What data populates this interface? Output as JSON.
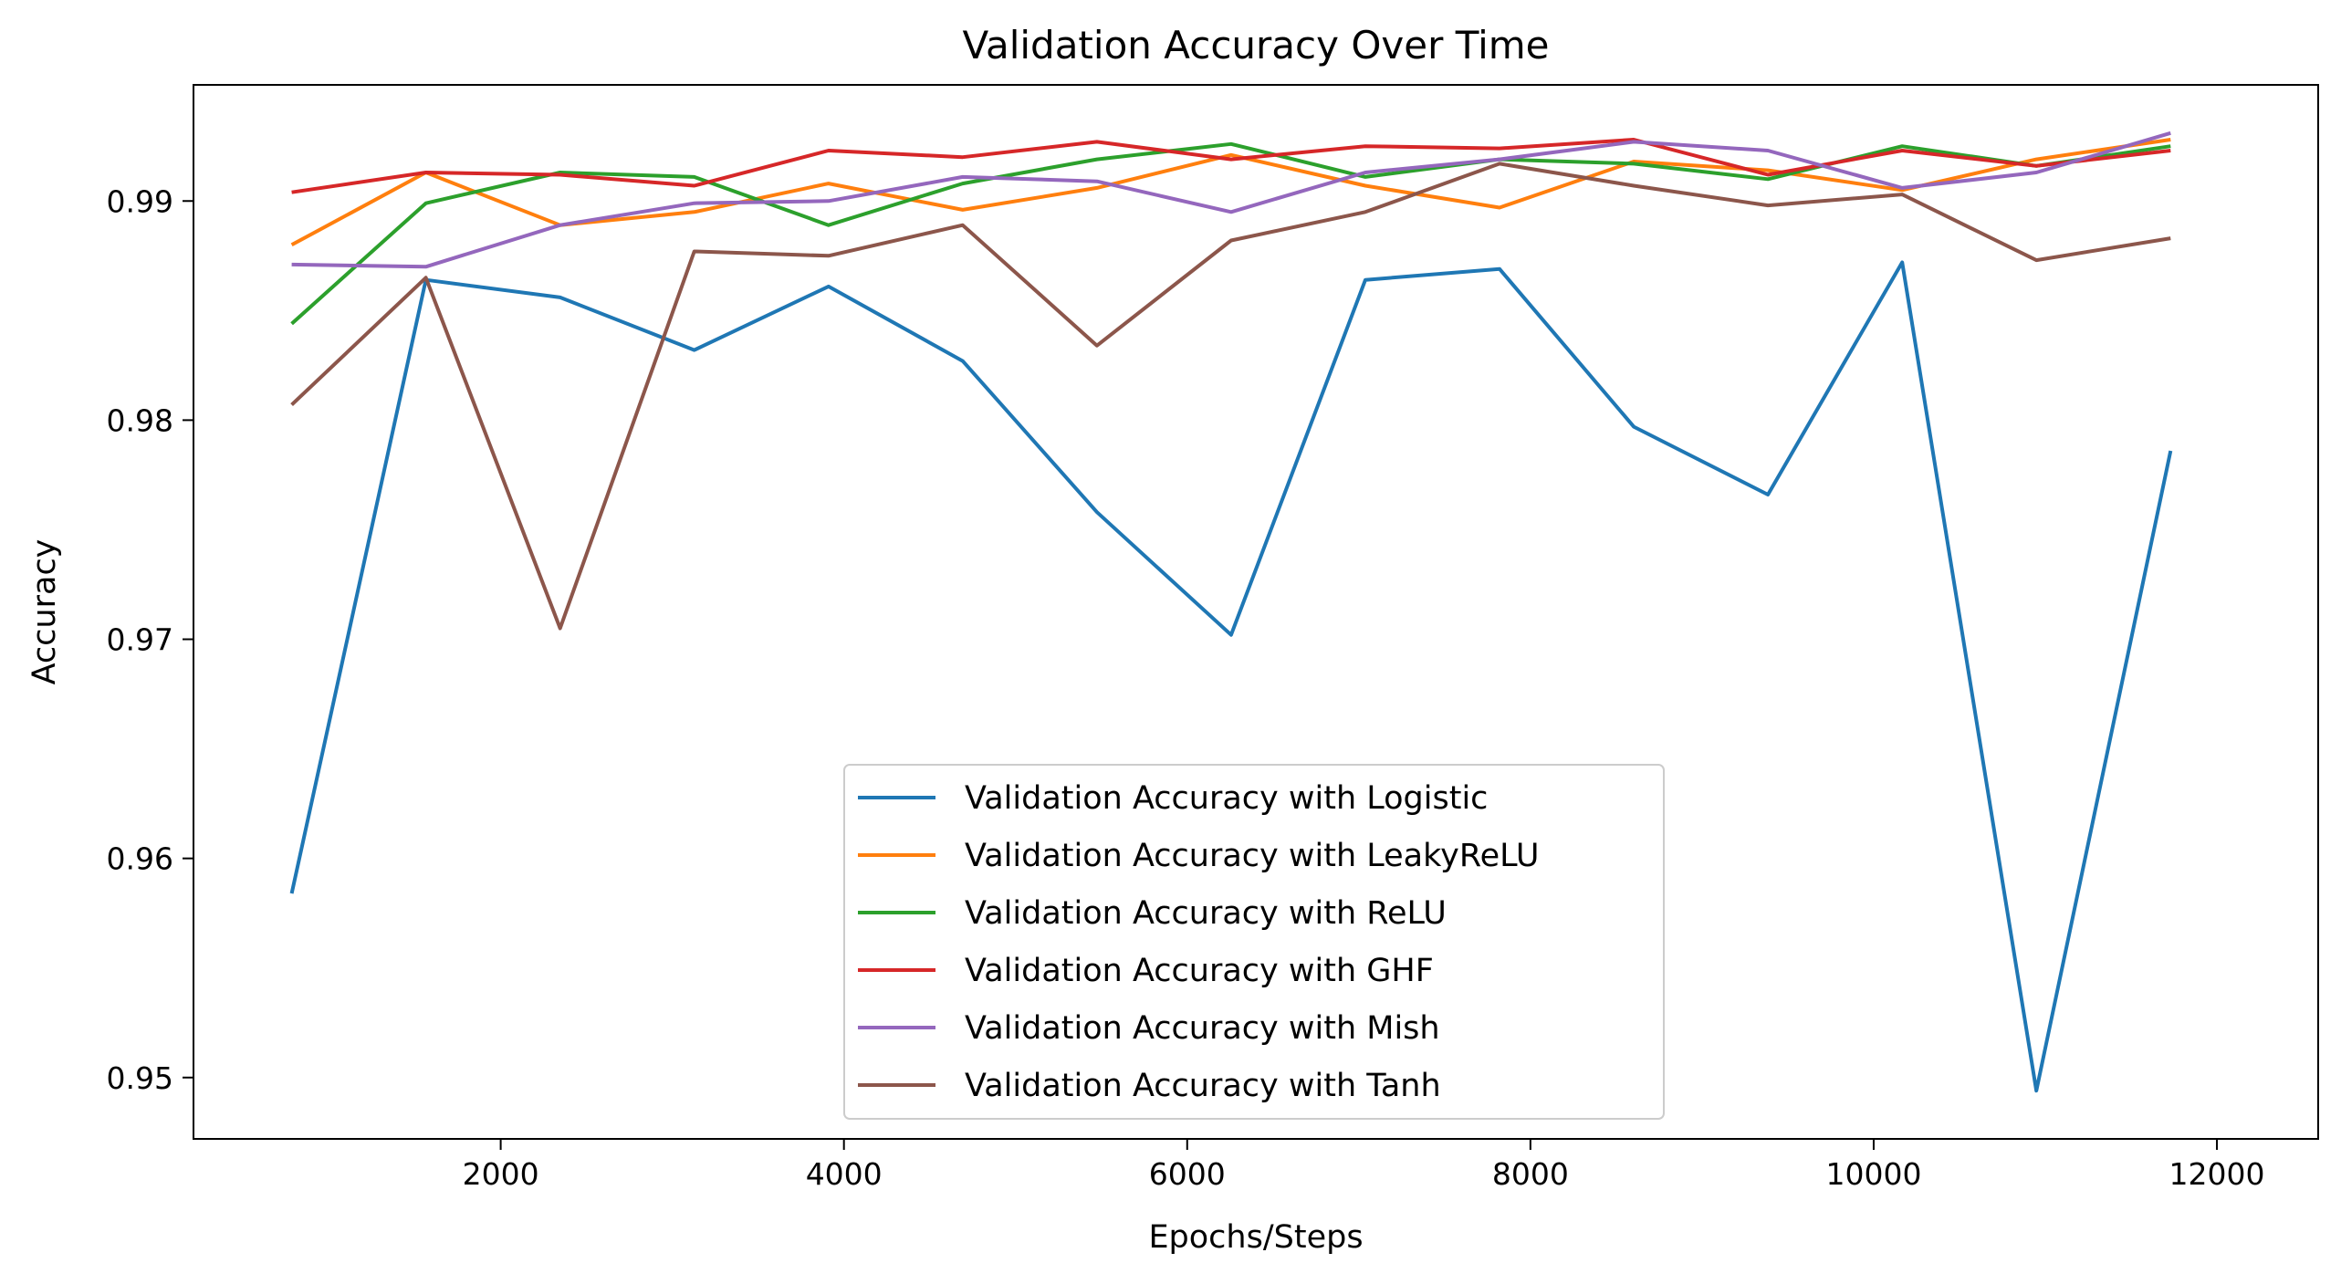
{
  "chart_data": {
    "type": "line",
    "title": "Validation Accuracy Over Time",
    "xlabel": "Epochs/Steps",
    "ylabel": "Accuracy",
    "xlim": [
      210,
      12590
    ],
    "ylim": [
      0.9472,
      0.9953
    ],
    "xticks": [
      2000,
      4000,
      6000,
      8000,
      10000,
      12000
    ],
    "yticks": [
      0.95,
      0.96,
      0.97,
      0.98,
      0.99
    ],
    "ytick_labels": [
      "0.95",
      "0.96",
      "0.97",
      "0.98",
      "0.99"
    ],
    "grid": false,
    "legend_position": "bottom-center",
    "x": [
      782,
      1564,
      2346,
      3128,
      3910,
      4692,
      5474,
      6256,
      7038,
      7820,
      8602,
      9384,
      10166,
      10948,
      11730
    ],
    "series": [
      {
        "name": "Validation Accuracy with Logistic",
        "color": "#1f77b4",
        "values": [
          0.9584,
          0.9864,
          0.9856,
          0.9832,
          0.9861,
          0.9827,
          0.9758,
          0.9702,
          0.9864,
          0.9869,
          0.9797,
          0.9766,
          0.9872,
          0.9494,
          0.9786
        ]
      },
      {
        "name": "Validation Accuracy with LeakyReLU",
        "color": "#ff7f0e",
        "values": [
          0.988,
          0.9913,
          0.9889,
          0.9895,
          0.9908,
          0.9896,
          0.9906,
          0.9921,
          0.9907,
          0.9897,
          0.9918,
          0.9914,
          0.9905,
          0.9919,
          0.9928
        ]
      },
      {
        "name": "Validation Accuracy with ReLU",
        "color": "#2ca02c",
        "values": [
          0.9844,
          0.9899,
          0.9913,
          0.9911,
          0.9889,
          0.9908,
          0.9919,
          0.9926,
          0.9911,
          0.9919,
          0.9917,
          0.991,
          0.9925,
          0.9916,
          0.9925
        ]
      },
      {
        "name": "Validation Accuracy with GHF",
        "color": "#d62728",
        "values": [
          0.9904,
          0.9913,
          0.9912,
          0.9907,
          0.9923,
          0.992,
          0.9927,
          0.9919,
          0.9925,
          0.9924,
          0.9928,
          0.9912,
          0.9923,
          0.9916,
          0.9923
        ]
      },
      {
        "name": "Validation Accuracy with Mish",
        "color": "#9467bd",
        "values": [
          0.9871,
          0.987,
          0.9889,
          0.9899,
          0.99,
          0.9911,
          0.9909,
          0.9895,
          0.9913,
          0.9919,
          0.9927,
          0.9923,
          0.9906,
          0.9913,
          0.9931
        ]
      },
      {
        "name": "Validation Accuracy with Tanh",
        "color": "#8c564b",
        "values": [
          0.9807,
          0.9865,
          0.9705,
          0.9877,
          0.9875,
          0.9889,
          0.9834,
          0.9882,
          0.9895,
          0.9917,
          0.9907,
          0.9898,
          0.9903,
          0.9873,
          0.9883
        ]
      }
    ]
  }
}
